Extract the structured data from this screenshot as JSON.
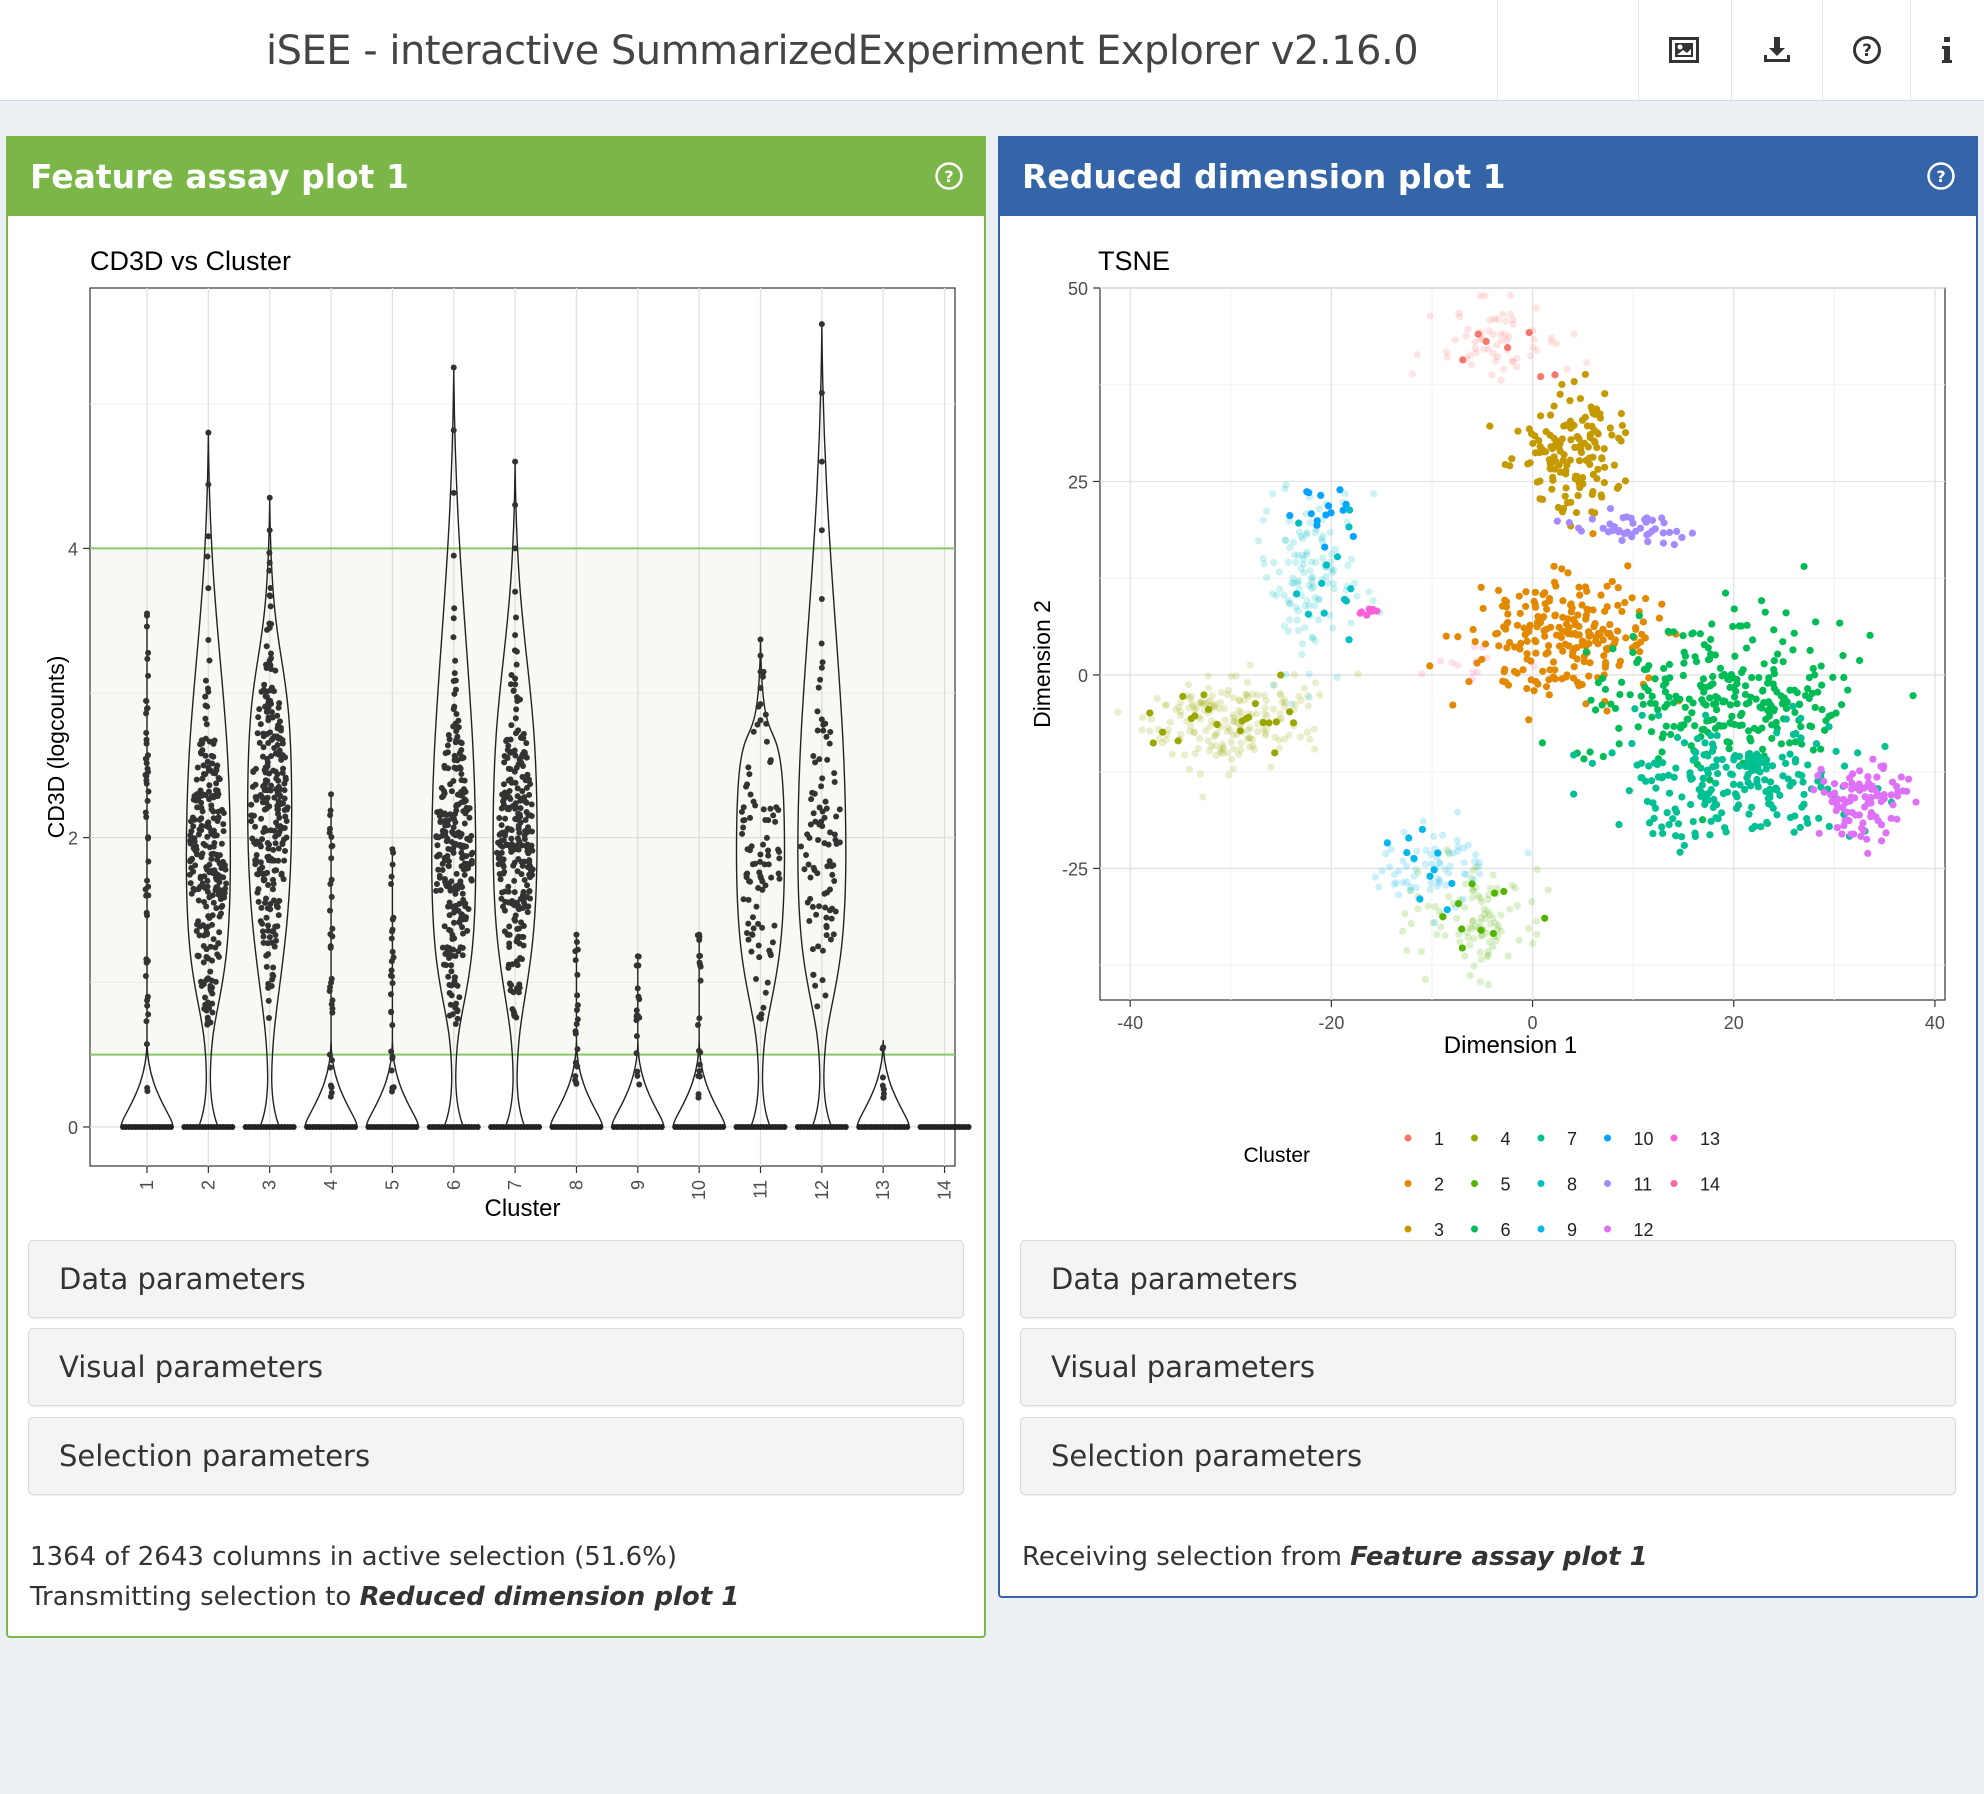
{
  "header": {
    "title": "iSEE - interactive SummarizedExperiment Explorer v2.16.0",
    "buttons": [
      {
        "icon": "image-icon"
      },
      {
        "icon": "download-icon"
      },
      {
        "icon": "question-circle-icon"
      },
      {
        "icon": "info-icon"
      }
    ]
  },
  "panel_left": {
    "title": "Feature assay plot 1",
    "params": [
      "Data parameters",
      "Visual parameters",
      "Selection parameters"
    ],
    "status_line1": "1364 of 2643 columns in active selection (51.6%)",
    "status_line2_prefix": "Transmitting selection to ",
    "status_line2_target": "Reduced dimension plot 1",
    "color": "#7ab648"
  },
  "panel_right": {
    "title": "Reduced dimension plot 1",
    "params": [
      "Data parameters",
      "Visual parameters",
      "Selection parameters"
    ],
    "status_prefix": "Receiving selection from ",
    "status_target": "Feature assay plot 1",
    "color": "#3465a8"
  },
  "chart_data": [
    {
      "type": "violin",
      "title": "CD3D vs Cluster",
      "xlabel": "Cluster",
      "ylabel": "CD3D (logcounts)",
      "categories": [
        "1",
        "2",
        "3",
        "4",
        "5",
        "6",
        "7",
        "8",
        "9",
        "10",
        "11",
        "12",
        "13",
        "14"
      ],
      "y_ticks": [
        0,
        2,
        4
      ],
      "ylim": [
        -0.27,
        5.8
      ],
      "selection_brush": {
        "ymin": 0.5,
        "ymax": 4.0
      },
      "max_values": [
        3.55,
        4.8,
        4.35,
        2.3,
        1.92,
        5.25,
        4.6,
        1.33,
        1.18,
        1.33,
        3.37,
        5.55,
        0.55,
        0.0
      ],
      "median_nonzero": [
        null,
        1.85,
        2.2,
        null,
        null,
        1.85,
        2.0,
        null,
        null,
        null,
        1.9,
        1.9,
        null,
        null
      ]
    },
    {
      "type": "scatter",
      "title": "TSNE",
      "xlabel": "Dimension 1",
      "ylabel": "Dimension 2",
      "x_ticks": [
        -40,
        -20,
        0,
        20,
        40
      ],
      "y_ticks": [
        -25,
        0,
        25,
        50
      ],
      "xlim": [
        -43,
        41
      ],
      "ylim": [
        -42,
        50
      ],
      "legend_title": "Cluster",
      "legend": [
        {
          "label": "1",
          "color": "#F8766D"
        },
        {
          "label": "2",
          "color": "#E38900"
        },
        {
          "label": "3",
          "color": "#C49A00"
        },
        {
          "label": "4",
          "color": "#99A800"
        },
        {
          "label": "5",
          "color": "#53B400"
        },
        {
          "label": "6",
          "color": "#00BC56"
        },
        {
          "label": "7",
          "color": "#00C094"
        },
        {
          "label": "8",
          "color": "#00BFC4"
        },
        {
          "label": "9",
          "color": "#00B6EB"
        },
        {
          "label": "10",
          "color": "#06A4FF"
        },
        {
          "label": "11",
          "color": "#A58AFF"
        },
        {
          "label": "12",
          "color": "#DF70F8"
        },
        {
          "label": "13",
          "color": "#FB61D7"
        },
        {
          "label": "14",
          "color": "#FF66A8"
        }
      ],
      "clusters": [
        {
          "label": "1",
          "cx": -3,
          "cy": 43,
          "sx": 3,
          "sy": 2.5,
          "n": 70,
          "selected": false
        },
        {
          "label": "2",
          "cx": 3,
          "cy": 5,
          "sx": 4.5,
          "sy": 4,
          "n": 230,
          "selected": true
        },
        {
          "label": "3",
          "cx": 4,
          "cy": 29,
          "sx": 2.5,
          "sy": 4,
          "n": 150,
          "selected": true
        },
        {
          "label": "4",
          "cx": -30,
          "cy": -6,
          "sx": 4.5,
          "sy": 3,
          "n": 210,
          "selected": false
        },
        {
          "label": "5",
          "cx": -5,
          "cy": -31,
          "sx": 3,
          "sy": 3.5,
          "n": 110,
          "selected": false
        },
        {
          "label": "6",
          "cx": 19,
          "cy": -3,
          "sx": 6,
          "sy": 5,
          "n": 280,
          "selected": true
        },
        {
          "label": "7",
          "cx": 20,
          "cy": -14,
          "sx": 6,
          "sy": 3.5,
          "n": 220,
          "selected": true
        },
        {
          "label": "8",
          "cx": -22,
          "cy": 13,
          "sx": 2.5,
          "sy": 6,
          "n": 140,
          "selected": false
        },
        {
          "label": "9",
          "cx": -10,
          "cy": -25,
          "sx": 2.5,
          "sy": 2.5,
          "n": 80,
          "selected": false
        },
        {
          "label": "10",
          "cx": -21,
          "cy": 20,
          "sx": 2,
          "sy": 2,
          "n": 15,
          "selected": true
        },
        {
          "label": "11",
          "cx": 10,
          "cy": 19,
          "sx": 3,
          "sy": 1,
          "n": 45,
          "selected": true
        },
        {
          "label": "12",
          "cx": 33,
          "cy": -16,
          "sx": 2.5,
          "sy": 2.5,
          "n": 95,
          "selected": true
        },
        {
          "label": "13",
          "cx": -16,
          "cy": 8.5,
          "sx": 0.6,
          "sy": 0.4,
          "n": 8,
          "selected": true
        },
        {
          "label": "14",
          "cx": -7,
          "cy": 1,
          "sx": 2,
          "sy": 1.5,
          "n": 12,
          "selected": false
        }
      ]
    }
  ]
}
